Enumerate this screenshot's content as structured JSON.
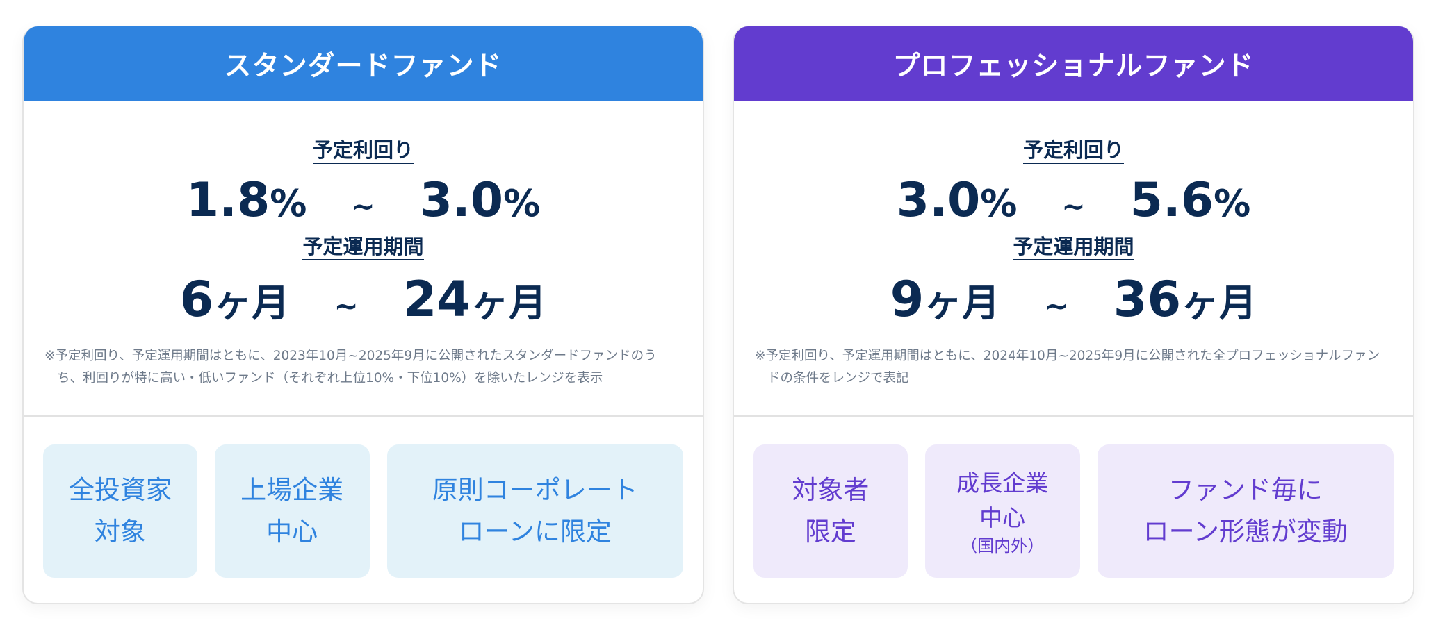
{
  "colors": {
    "standard_accent": "#2f83df",
    "standard_tile_bg": "#e3f2f9",
    "pro_accent": "#623ccf",
    "pro_tile_bg": "#efeafb",
    "text_dark": "#0b2a52",
    "text_muted": "#6e7a8a"
  },
  "cards": [
    {
      "title": "スタンダードファンド",
      "yield": {
        "label": "予定利回り",
        "min_num": "1.8",
        "min_unit": "%",
        "tilde": "~",
        "max_num": "3.0",
        "max_unit": "%"
      },
      "period": {
        "label": "予定運用期間",
        "min_num": "6",
        "min_unit": "ヶ月",
        "tilde": "~",
        "max_num": "24",
        "max_unit": "ヶ月"
      },
      "footnote": "※予定利回り、予定運用期間はともに、2023年10月~2025年9月に公開されたスタンダードファンドのうち、利回りが特に高い・低いファンド（それぞれ上位10%・下位10%）を除いたレンジを表示",
      "tiles": [
        {
          "lines": [
            "全投資家",
            "対象"
          ]
        },
        {
          "lines": [
            "上場企業",
            "中心"
          ]
        },
        {
          "lines": [
            "原則コーポレート",
            "ローンに限定"
          ]
        }
      ]
    },
    {
      "title": "プロフェッショナルファンド",
      "yield": {
        "label": "予定利回り",
        "min_num": "3.0",
        "min_unit": "%",
        "tilde": "~",
        "max_num": "5.6",
        "max_unit": "%"
      },
      "period": {
        "label": "予定運用期間",
        "min_num": "9",
        "min_unit": "ヶ月",
        "tilde": "~",
        "max_num": "36",
        "max_unit": "ヶ月"
      },
      "footnote": "※予定利回り、予定運用期間はともに、2024年10月~2025年9月に公開された全プロフェッショナルファンドの条件をレンジで表記",
      "tiles": [
        {
          "lines": [
            "対象者",
            "限定"
          ]
        },
        {
          "lines": [
            "成長企業",
            "中心"
          ],
          "sub": "（国内外）"
        },
        {
          "lines": [
            "ファンド毎に",
            "ローン形態が変動"
          ]
        }
      ]
    }
  ]
}
